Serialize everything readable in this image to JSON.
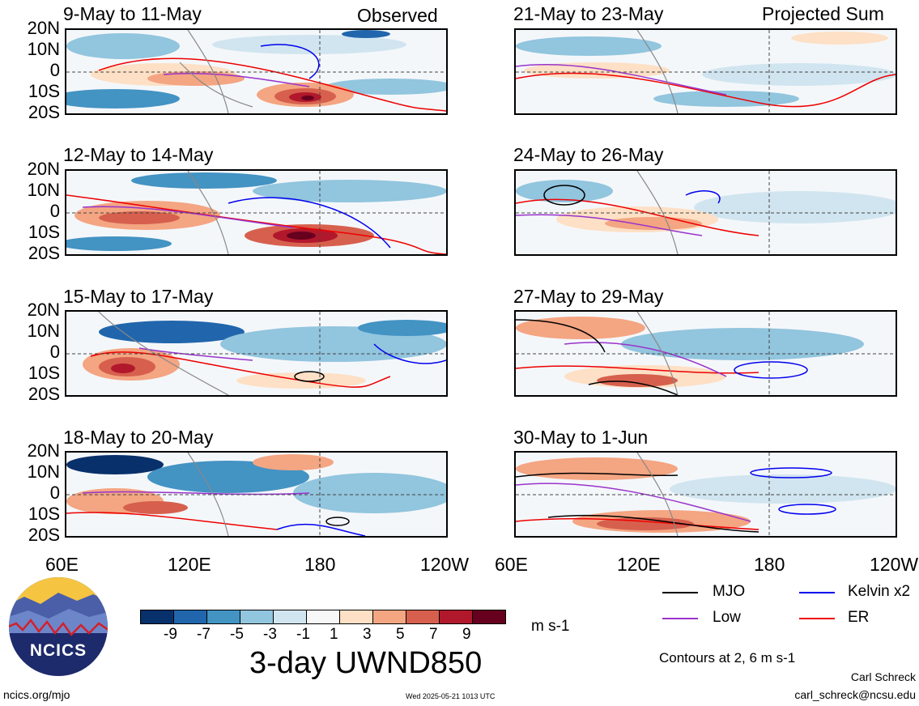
{
  "header": {
    "left_tag": "Observed",
    "right_tag": "Projected Sum"
  },
  "panels": [
    {
      "title": "9-May to 11-May"
    },
    {
      "title": "12-May to 14-May"
    },
    {
      "title": "15-May to 17-May"
    },
    {
      "title": "18-May to 20-May"
    },
    {
      "title": "21-May to 23-May"
    },
    {
      "title": "24-May to 26-May"
    },
    {
      "title": "27-May to 29-May"
    },
    {
      "title": "30-May to 1-Jun"
    }
  ],
  "lat_labels": [
    "20N",
    "10N",
    "0",
    "10S",
    "20S"
  ],
  "lon_labels": [
    "60E",
    "120E",
    "180",
    "120W"
  ],
  "colorbar": {
    "colors": [
      "#08306b",
      "#2166ac",
      "#4393c3",
      "#92c5de",
      "#d1e5f0",
      "#f7f7f7",
      "#fde0c5",
      "#f4a582",
      "#d6604d",
      "#b2182b",
      "#67001f"
    ],
    "ticks": [
      "-9",
      "-7",
      "-5",
      "-3",
      "-1",
      "1",
      "3",
      "5",
      "7",
      "9"
    ],
    "units": "m s-1"
  },
  "main_title": "3-day UWND850",
  "legend": [
    {
      "label": "MJO",
      "color": "#000000"
    },
    {
      "label": "Kelvin x2",
      "color": "#0000ee"
    },
    {
      "label": "Low",
      "color": "#9933cc"
    },
    {
      "label": "ER",
      "color": "#ee0000"
    }
  ],
  "contours_note": "Contours at 2, 6 m s-1",
  "author": "Carl Schreck",
  "email": "carl_schreck@ncsu.edu",
  "url": "ncics.org/mjo",
  "timestamp": "Wed 2025-05-21 1013 UTC",
  "logo_text": "NCICS"
}
